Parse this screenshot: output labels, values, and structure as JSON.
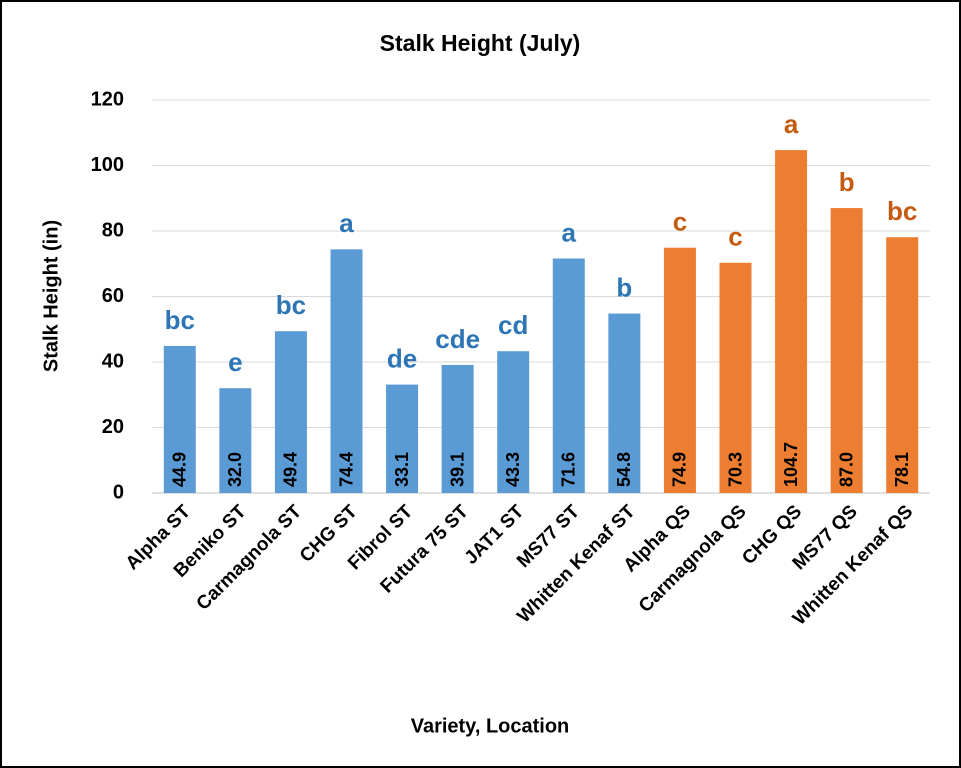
{
  "chart_data": {
    "type": "bar",
    "title": "Stalk Height (July)",
    "x_label": "Variety, Location",
    "y_label": "Stalk Height (in)",
    "categories": [
      "Alpha ST",
      "Beniko ST",
      "Carmagnola ST",
      "CHG ST",
      "Fibrol ST",
      "Futura 75 ST",
      "JAT1 ST",
      "MS77 ST",
      "Whitten Kenaf ST",
      "Alpha QS",
      "Carmagnola QS",
      "CHG QS",
      "MS77 QS",
      "Whitten Kenaf QS"
    ],
    "values": [
      44.9,
      32,
      49.4,
      74.4,
      33.1,
      39.1,
      43.3,
      71.6,
      54.8,
      74.9,
      70.3,
      104.7,
      87,
      78.1
    ],
    "value_labels": [
      "44.9",
      "32.0",
      "49.4",
      "74.4",
      "33.1",
      "39.1",
      "43.3",
      "71.6",
      "54.8",
      "74.9",
      "70.3",
      "104.7",
      "87.0",
      "78.1"
    ],
    "annotations": [
      "bc",
      "e",
      "bc",
      "a",
      "de",
      "cde",
      "cd",
      "a",
      "b",
      "c",
      "c",
      "a",
      "b",
      "bc"
    ],
    "colors": [
      "#5b9bd5",
      "#5b9bd5",
      "#5b9bd5",
      "#5b9bd5",
      "#5b9bd5",
      "#5b9bd5",
      "#5b9bd5",
      "#5b9bd5",
      "#5b9bd5",
      "#ed7d31",
      "#ed7d31",
      "#ed7d31",
      "#ed7d31",
      "#ed7d31"
    ],
    "annotation_colors": [
      "#2e75b6",
      "#2e75b6",
      "#2e75b6",
      "#2e75b6",
      "#2e75b6",
      "#2e75b6",
      "#2e75b6",
      "#2e75b6",
      "#2e75b6",
      "#c55a11",
      "#c55a11",
      "#c55a11",
      "#c55a11",
      "#c55a11"
    ],
    "ylim": [
      0,
      120
    ],
    "yticks": [
      0,
      20,
      40,
      60,
      80,
      100,
      120
    ],
    "grid": true
  }
}
